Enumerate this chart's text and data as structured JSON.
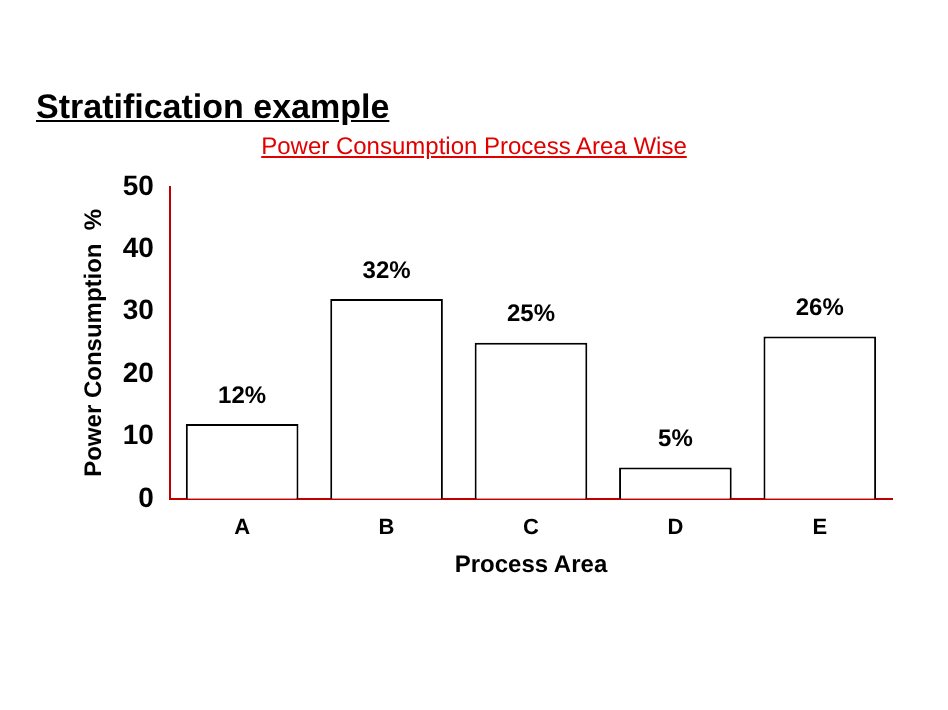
{
  "chart_data": {
    "type": "bar",
    "title": "Stratification example",
    "subtitle": "Power Consumption Process Area Wise",
    "xlabel": "Process Area",
    "ylabel": "Power Consumption  %",
    "categories": [
      "A",
      "B",
      "C",
      "D",
      "E"
    ],
    "values": [
      12,
      32,
      25,
      5,
      26
    ],
    "value_labels": [
      "12%",
      "32%",
      "25%",
      "5%",
      "26%"
    ],
    "color": "#ffffff",
    "ylim": [
      0,
      50
    ],
    "yticks": [
      0,
      10,
      20,
      30,
      40,
      50
    ],
    "grid": false,
    "legend": false
  }
}
